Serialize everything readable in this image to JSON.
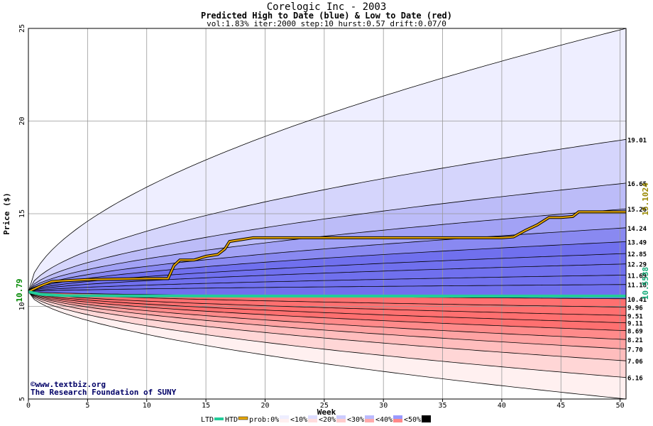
{
  "header": {
    "title": "Corelogic Inc - 2003",
    "subtitle": "Predicted High to Date (blue) &  Low to Date (red)",
    "params": "vol:1.83% iter:2000 step:10 hurst:0.57 drift:0.07/0"
  },
  "credit": {
    "line1": "©www.textbiz.org",
    "line2": "The Research Foundation of SUNY"
  },
  "legend": {
    "items": [
      "LTD",
      "HTD",
      "prob:0%",
      "<10%",
      "<20%",
      "<30%",
      "<40%",
      "<50%"
    ]
  },
  "colors": {
    "htd_line": "#e8a800",
    "ltd_line": "#22cc99",
    "blue_band_light": "#eeeeff",
    "blue_band_dark": "#7070ee",
    "red_band_light": "#fff0f0",
    "red_band_dark": "#ff7070",
    "start_label": "#008800",
    "htd_label": "#998800",
    "ltd_label": "#11aa77"
  },
  "chart_data": {
    "type": "area",
    "xlabel": "Week",
    "ylabel": "Price ($)",
    "xlim": [
      0,
      50.5
    ],
    "ylim": [
      5,
      25
    ],
    "xticks": [
      0,
      5,
      10,
      15,
      20,
      25,
      30,
      35,
      40,
      45,
      50
    ],
    "yticks": [
      5,
      10,
      15,
      20,
      25
    ],
    "grid": true,
    "start_price": 10.79,
    "start_label": "10.79",
    "upper_quantiles": [
      {
        "prob": "0%",
        "end_value": 19.01,
        "label": "19.01"
      },
      {
        "prob": "<10%",
        "end_value": 16.65,
        "label": "16.65"
      },
      {
        "prob": "<20%",
        "end_value": 15.26,
        "label": "15.26"
      },
      {
        "prob": "<30%",
        "end_value": 14.24,
        "label": "14.24"
      },
      {
        "prob": "<40%",
        "end_value": 13.49,
        "label": "13.49"
      },
      {
        "prob": "<50%",
        "end_value": 12.85,
        "label": "12.85"
      },
      {
        "prob": "<50%",
        "end_value": 12.29,
        "label": "12.29"
      },
      {
        "prob": "<50%",
        "end_value": 11.69,
        "label": "11.69"
      },
      {
        "prob": "<50%",
        "end_value": 11.18,
        "label": "11.18"
      },
      {
        "prob": "<50%",
        "end_value": 10.41,
        "label": "10.41"
      }
    ],
    "lower_quantiles": [
      {
        "prob": "<50%",
        "end_value": 9.96,
        "label": "9.96"
      },
      {
        "prob": "<50%",
        "end_value": 9.51,
        "label": "9.51"
      },
      {
        "prob": "<50%",
        "end_value": 9.11,
        "label": "9.11"
      },
      {
        "prob": "<40%",
        "end_value": 8.69,
        "label": "8.69"
      },
      {
        "prob": "<30%",
        "end_value": 8.21,
        "label": "8.21"
      },
      {
        "prob": "<20%",
        "end_value": 7.7,
        "label": "7.70"
      },
      {
        "prob": "<10%",
        "end_value": 7.06,
        "label": "7.06"
      },
      {
        "prob": "0%",
        "end_value": 6.16,
        "label": "6.16"
      }
    ],
    "outer_upper_end": 25,
    "outer_lower_end": 5,
    "series": [
      {
        "name": "HTD",
        "final_label": "15.1024",
        "points": [
          [
            0,
            10.79
          ],
          [
            1,
            11.1
          ],
          [
            2,
            11.35
          ],
          [
            5,
            11.45
          ],
          [
            10,
            11.5
          ],
          [
            11.8,
            11.5
          ],
          [
            12.3,
            12.2
          ],
          [
            12.8,
            12.5
          ],
          [
            14,
            12.5
          ],
          [
            15,
            12.7
          ],
          [
            16,
            12.8
          ],
          [
            16.6,
            13.1
          ],
          [
            17,
            13.5
          ],
          [
            18,
            13.6
          ],
          [
            19,
            13.7
          ],
          [
            25,
            13.7
          ],
          [
            30,
            13.7
          ],
          [
            35,
            13.7
          ],
          [
            40,
            13.7
          ],
          [
            41,
            13.75
          ],
          [
            42,
            14.1
          ],
          [
            43,
            14.4
          ],
          [
            44,
            14.8
          ],
          [
            45,
            14.8
          ],
          [
            46,
            14.85
          ],
          [
            46.5,
            15.1
          ],
          [
            50.5,
            15.1
          ]
        ]
      },
      {
        "name": "LTD",
        "final_label": "10.5538",
        "points": [
          [
            0,
            10.79
          ],
          [
            1,
            10.65
          ],
          [
            3,
            10.58
          ],
          [
            10,
            10.56
          ],
          [
            20,
            10.555
          ],
          [
            30,
            10.554
          ],
          [
            40,
            10.554
          ],
          [
            50.5,
            10.5538
          ]
        ]
      }
    ]
  }
}
